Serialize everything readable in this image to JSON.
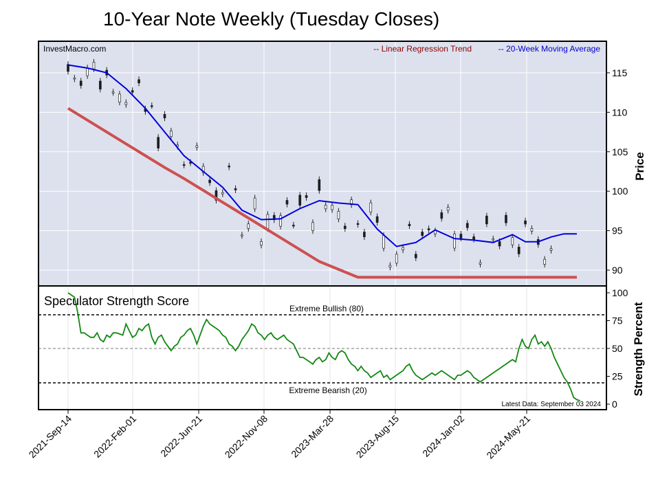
{
  "title": "10-Year Note Weekly (Tuesday Closes)",
  "source_label": "InvestMacro.com",
  "legend": {
    "trend": "-- Linear Regression Trend",
    "ma": "-- 20-Week Moving Average"
  },
  "colors": {
    "plot_bg": "#dde1ee",
    "trend": "#cd5050",
    "trend_label": "#8b0000",
    "ma": "#0000dd",
    "ma_label": "#0000cc",
    "strength": "#118811",
    "candle_down": "#1e1e1e",
    "candle_up": "#ffffff"
  },
  "price_panel": {
    "ylabel": "Price",
    "yticks": [
      "115",
      "110",
      "105",
      "100",
      "95",
      "90"
    ]
  },
  "strength_panel": {
    "title": "Speculator Strength Score",
    "ylabel": "Strength Percent",
    "yticks": [
      "100",
      "75",
      "50",
      "25",
      "0"
    ],
    "bullish_label": "Extreme Bullish (80)",
    "bearish_label": "Extreme Bearish (20)",
    "latest_label": "Latest Data: September 03 2024"
  },
  "x_ticks": [
    "2021-Sep-14",
    "2022-Feb-01",
    "2022-Jun-21",
    "2022-Nov-08",
    "2023-Mar-28",
    "2023-Aug-15",
    "2024-Jan-02",
    "2024-May-21"
  ],
  "chart_data": [
    {
      "type": "line",
      "name": "price",
      "ylim": [
        88,
        119
      ],
      "x": [
        0,
        6,
        12,
        18,
        24,
        30,
        36,
        42,
        48,
        54,
        60,
        66,
        72,
        78,
        84,
        90,
        96,
        102,
        108,
        114,
        120,
        126,
        132,
        138,
        142,
        146,
        150,
        154,
        158
      ],
      "series": [
        {
          "name": "Linear Regression Trend",
          "values": [
            110.5,
            109.0,
            107.5,
            106.0,
            104.5,
            103.0,
            101.6,
            100.1,
            98.6,
            97.1,
            95.6,
            94.1,
            92.6,
            91.1,
            90.1,
            89.1,
            89.1,
            89.1,
            89.1,
            89.1,
            89.1,
            89.1,
            89.1,
            89.1,
            89.1,
            89.1,
            89.1,
            89.1,
            89.1
          ]
        },
        {
          "name": "20-Week Moving Average",
          "values": [
            116.0,
            115.6,
            115.0,
            113.0,
            110.5,
            107.5,
            104.5,
            102.5,
            100.5,
            97.6,
            96.4,
            96.5,
            97.8,
            98.8,
            98.5,
            98.3,
            95.2,
            93.0,
            93.5,
            95.1,
            94.0,
            93.8,
            93.5,
            94.5,
            93.6,
            93.6,
            94.2,
            94.6,
            94.6
          ]
        }
      ]
    },
    {
      "type": "line",
      "name": "speculator_strength",
      "ylim": [
        0,
        100
      ],
      "x": [
        0,
        1,
        2,
        3,
        4,
        5,
        6,
        7,
        8,
        9,
        10,
        11,
        12,
        13,
        14,
        15,
        16,
        17,
        18,
        19,
        20,
        21,
        22,
        23,
        24,
        25,
        26,
        27,
        28,
        29,
        30,
        31,
        32,
        33,
        34,
        35,
        36,
        37,
        38,
        39,
        40,
        41,
        42,
        43,
        44,
        45,
        46,
        47,
        48,
        49,
        50,
        51,
        52,
        53,
        54,
        55,
        56,
        57,
        58,
        59,
        60,
        61,
        62,
        63,
        64,
        65,
        66,
        67,
        68,
        69,
        70,
        71,
        72,
        73,
        74,
        75,
        76,
        77,
        78,
        79,
        80,
        81,
        82,
        83,
        84,
        85,
        86,
        87,
        88,
        89,
        90,
        91,
        92,
        93,
        94,
        95,
        96,
        97,
        98,
        99,
        100,
        101,
        102,
        103,
        104,
        105,
        106,
        107,
        108,
        109,
        110,
        111,
        112,
        113,
        114,
        115,
        116,
        117,
        118,
        119,
        120,
        121,
        122,
        123,
        124,
        125,
        126,
        127,
        128,
        129,
        130,
        131,
        132,
        133,
        134,
        135,
        136,
        137,
        138,
        139,
        140,
        141,
        142,
        143,
        144,
        145,
        146,
        147,
        148,
        149,
        150,
        151,
        152,
        153,
        154,
        155,
        156,
        157,
        158,
        159
      ],
      "series": [
        {
          "name": "Strength Score",
          "values": [
            100,
            98,
            96,
            82,
            64,
            64,
            62,
            60,
            60,
            64,
            58,
            56,
            62,
            60,
            64,
            64,
            63,
            62,
            72,
            66,
            60,
            62,
            68,
            66,
            70,
            72,
            60,
            54,
            60,
            62,
            56,
            52,
            48,
            52,
            54,
            60,
            62,
            66,
            68,
            62,
            54,
            62,
            70,
            76,
            72,
            70,
            68,
            66,
            62,
            60,
            54,
            52,
            48,
            52,
            58,
            62,
            66,
            72,
            70,
            64,
            62,
            58,
            62,
            64,
            60,
            58,
            60,
            62,
            58,
            56,
            54,
            48,
            42,
            42,
            40,
            38,
            36,
            40,
            42,
            38,
            40,
            46,
            42,
            40,
            46,
            48,
            46,
            40,
            36,
            34,
            30,
            34,
            30,
            28,
            24,
            26,
            28,
            30,
            24,
            26,
            22,
            24,
            26,
            28,
            30,
            34,
            36,
            30,
            26,
            24,
            22,
            24,
            26,
            28,
            26,
            28,
            30,
            28,
            26,
            24,
            22,
            26,
            26,
            28,
            30,
            28,
            24,
            22,
            20,
            22,
            24,
            26,
            28,
            30,
            32,
            34,
            36,
            38,
            40,
            38,
            50,
            58,
            52,
            50,
            58,
            62,
            54,
            56,
            52,
            56,
            50,
            42,
            36,
            30,
            24,
            20,
            14,
            6,
            4,
            3
          ]
        }
      ]
    }
  ]
}
